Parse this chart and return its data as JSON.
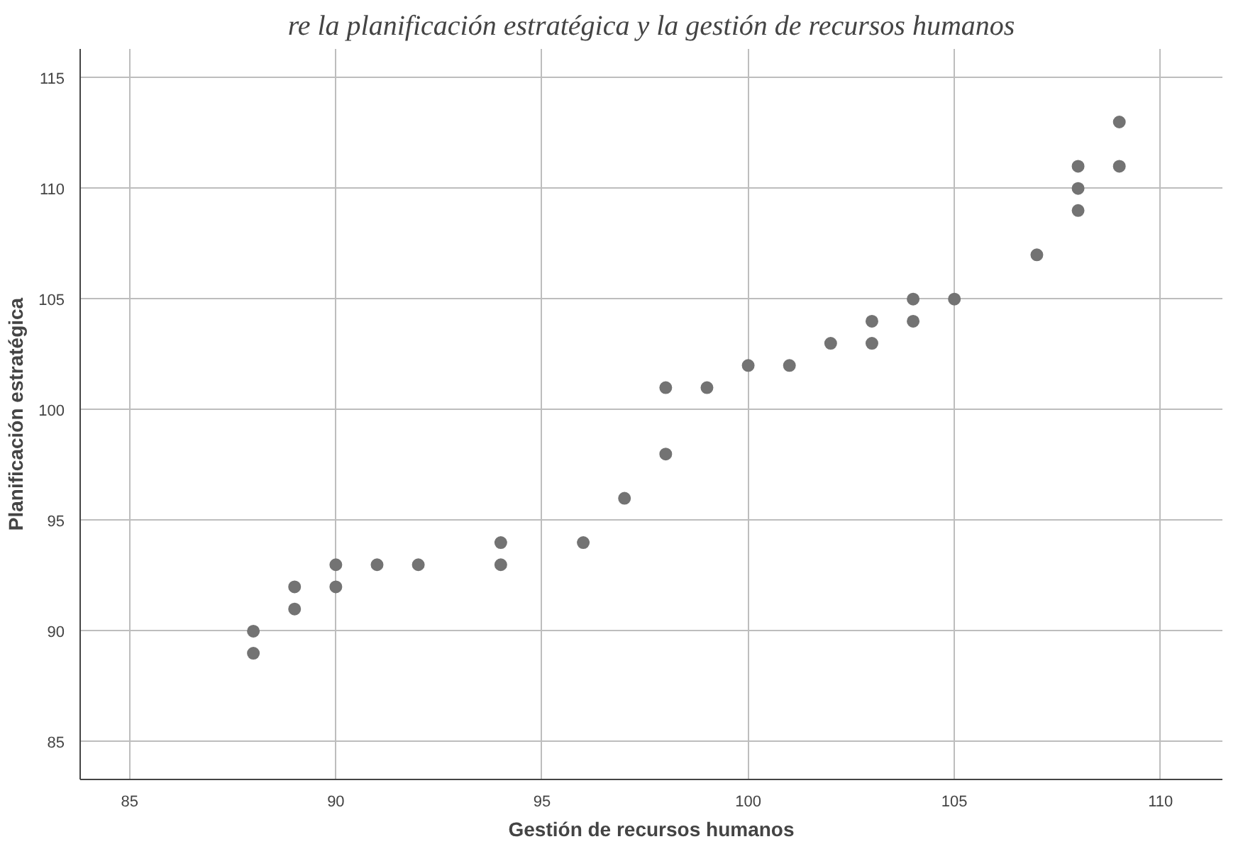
{
  "chart_data": {
    "type": "scatter",
    "title": "re la planificación estratégica y la gestión de recursos humanos",
    "xlabel": "Gestión de recursos humanos",
    "ylabel": "Planificación estratégica",
    "x": [
      88,
      88,
      89,
      89,
      90,
      90,
      91,
      92,
      94,
      94,
      96,
      97,
      98,
      98,
      99,
      100,
      101,
      102,
      103,
      103,
      104,
      104,
      105,
      107,
      108,
      108,
      108,
      109,
      109
    ],
    "series": [
      {
        "color": "#737373",
        "values": [
          90,
          89,
          92,
          91,
          93,
          92,
          93,
          93,
          94,
          93,
          94,
          96,
          101,
          98,
          101,
          102,
          102,
          103,
          104,
          103,
          105,
          104,
          105,
          107,
          111,
          110,
          109,
          113,
          111
        ]
      }
    ],
    "xlim": [
      83.8,
      111.5
    ],
    "ylim": [
      83.3,
      116.3
    ],
    "xticks": [
      85,
      90,
      95,
      100,
      105,
      110
    ],
    "yticks": [
      85,
      90,
      95,
      100,
      105,
      110,
      115
    ],
    "grid": true,
    "marker": "circle"
  }
}
